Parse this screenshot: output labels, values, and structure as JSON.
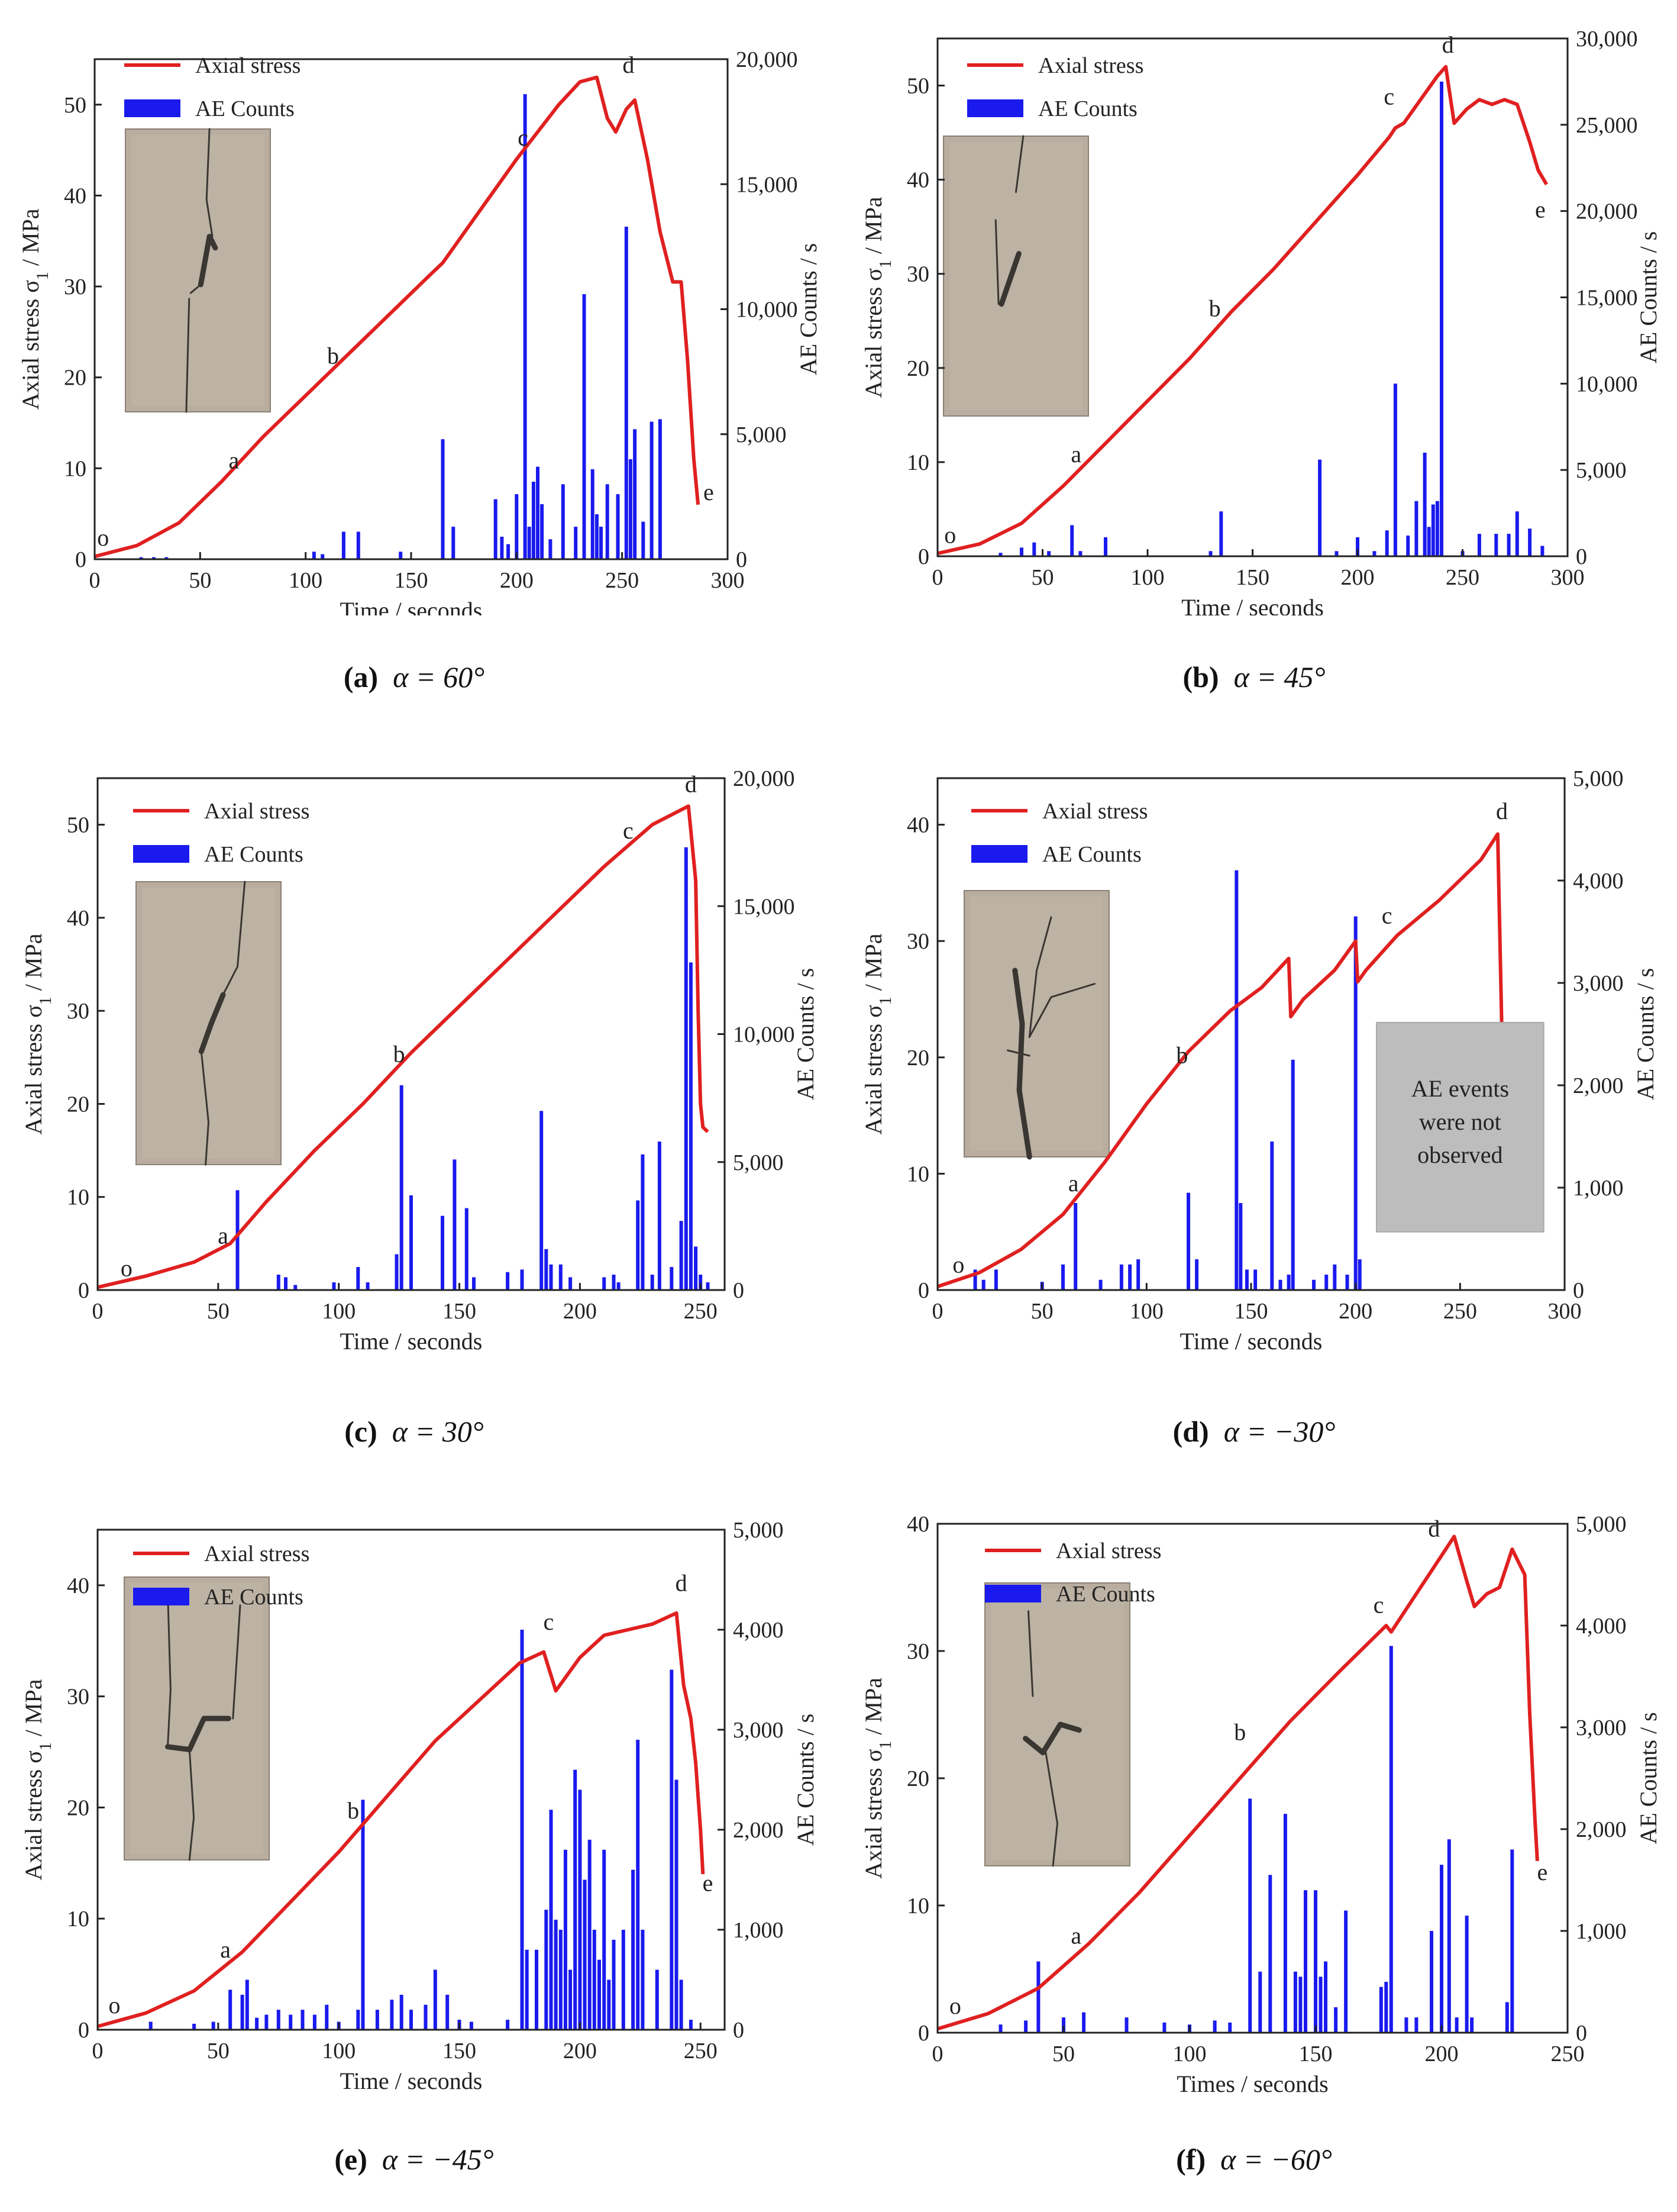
{
  "colors": {
    "stress": "#e02020",
    "ae": "#1a1aee",
    "axis": "#222222",
    "note_box": "#bdbdbd",
    "photo": "#b8ad9e",
    "crack": "#3a3632"
  },
  "legend": {
    "stress": "Axial stress",
    "ae": "AE Counts"
  },
  "y_left_prefix": "Axial stress σ",
  "y_left_sub": "1",
  "y_left_suffix": " / MPa",
  "ylabel_right": "AE Counts / s",
  "xlabel_default": "Time / seconds",
  "xlabel_f": "Times / seconds",
  "note_d": [
    "AE events",
    "were not",
    "observed"
  ],
  "captions": [
    {
      "label": "(a)",
      "alpha": "α = 60°"
    },
    {
      "label": "(b)",
      "alpha": "α = 45°"
    },
    {
      "label": "(c)",
      "alpha": "α = 30°"
    },
    {
      "label": "(d)",
      "alpha": "α = −30°"
    },
    {
      "label": "(e)",
      "alpha": "α = −45°"
    },
    {
      "label": "(f)",
      "alpha": "α = −60°"
    }
  ],
  "chart_data": [
    {
      "type": "line+bar",
      "panel": "a",
      "xlabel": "Time / seconds",
      "xlim": [
        0,
        300
      ],
      "xticks": [
        0,
        50,
        100,
        150,
        200,
        250,
        300
      ],
      "ylim_left": [
        0,
        55
      ],
      "yticks_left": [
        0,
        10,
        20,
        30,
        40,
        50
      ],
      "ylim_right": [
        0,
        20000
      ],
      "yticks_right": [
        0,
        5000,
        10000,
        15000,
        20000
      ],
      "yticks_right_labels": [
        "0",
        "5,000",
        "10,000",
        "15,000",
        "20,000"
      ],
      "stress_x": [
        0,
        20,
        40,
        60,
        80,
        100,
        120,
        140,
        160,
        165,
        180,
        200,
        220,
        230,
        238,
        243,
        247,
        252,
        256,
        262,
        268,
        274,
        278,
        281,
        284,
        286
      ],
      "stress_y": [
        0.3,
        1.5,
        4,
        8.5,
        13.5,
        18,
        22.5,
        27,
        31.5,
        32.6,
        37.5,
        44,
        50,
        52.5,
        53,
        48.5,
        47,
        49.5,
        50.5,
        44,
        36,
        30.5,
        30.5,
        22,
        11,
        6
      ],
      "ae_x": [
        22,
        28,
        34,
        104,
        108,
        118,
        125,
        145,
        165,
        170,
        190,
        193,
        196,
        200,
        204,
        206,
        208,
        210,
        212,
        216,
        222,
        228,
        232,
        236,
        238,
        240,
        243,
        248,
        252,
        254,
        256,
        260,
        264,
        268
      ],
      "ae_y": [
        80,
        80,
        80,
        300,
        200,
        1100,
        1100,
        300,
        4800,
        1300,
        2400,
        900,
        600,
        2600,
        18600,
        1300,
        3100,
        3700,
        2200,
        800,
        3000,
        1300,
        10600,
        3600,
        1800,
        1300,
        3000,
        2600,
        13300,
        4000,
        5200,
        1500,
        5500,
        5600
      ],
      "points": [
        {
          "label": "o",
          "x": 4,
          "y": 1.5
        },
        {
          "label": "a",
          "x": 66,
          "y": 10
        },
        {
          "label": "b",
          "x": 113,
          "y": 21.5
        },
        {
          "label": "c",
          "x": 203,
          "y": 45.5
        },
        {
          "label": "d",
          "x": 253,
          "y": 53.5
        },
        {
          "label": "e",
          "x": 291,
          "y": 6.5
        }
      ],
      "legend_position": "top-left",
      "inset_photo": true
    },
    {
      "type": "line+bar",
      "panel": "b",
      "xlabel": "Time / seconds",
      "xlim": [
        0,
        300
      ],
      "xticks": [
        0,
        50,
        100,
        150,
        200,
        250,
        300
      ],
      "ylim_left": [
        0,
        55
      ],
      "yticks_left": [
        0,
        10,
        20,
        30,
        40,
        50
      ],
      "ylim_right": [
        0,
        30000
      ],
      "yticks_right": [
        0,
        5000,
        10000,
        15000,
        20000,
        25000,
        30000
      ],
      "yticks_right_labels": [
        "0",
        "5,000",
        "10,000",
        "15,000",
        "20,000",
        "25,000",
        "30,000"
      ],
      "stress_x": [
        0,
        20,
        40,
        60,
        80,
        100,
        120,
        140,
        160,
        180,
        200,
        215,
        218,
        222,
        230,
        238,
        242,
        246,
        252,
        258,
        264,
        270,
        276,
        282,
        286,
        290
      ],
      "stress_y": [
        0.3,
        1.3,
        3.5,
        7.5,
        12,
        16.5,
        21,
        26,
        30.5,
        35.5,
        40.5,
        44.5,
        45.5,
        46,
        48.5,
        51,
        52,
        46,
        47.5,
        48.5,
        48,
        48.5,
        48,
        44,
        41,
        39.5
      ],
      "ae_x": [
        30,
        40,
        46,
        53,
        64,
        68,
        80,
        130,
        135,
        182,
        190,
        200,
        208,
        214,
        218,
        224,
        228,
        232,
        234,
        236,
        238,
        240,
        250,
        258,
        266,
        272,
        276,
        282,
        288
      ],
      "ae_y": [
        200,
        500,
        800,
        300,
        1800,
        300,
        1100,
        300,
        2600,
        5600,
        300,
        1100,
        300,
        1500,
        10000,
        1200,
        3200,
        6000,
        1700,
        3000,
        3200,
        27500,
        300,
        1300,
        1300,
        1300,
        2600,
        1600,
        600
      ],
      "points": [
        {
          "label": "o",
          "x": 6,
          "y": 1.4
        },
        {
          "label": "a",
          "x": 66,
          "y": 10
        },
        {
          "label": "b",
          "x": 132,
          "y": 25.5
        },
        {
          "label": "c",
          "x": 215,
          "y": 48
        },
        {
          "label": "d",
          "x": 243,
          "y": 53.5
        },
        {
          "label": "e",
          "x": 287,
          "y": 36
        }
      ],
      "legend_position": "top-left",
      "inset_photo": true
    },
    {
      "type": "line+bar",
      "panel": "c",
      "xlabel": "Time / seconds",
      "xlim": [
        0,
        260
      ],
      "xticks": [
        0,
        50,
        100,
        150,
        200,
        250
      ],
      "ylim_left": [
        0,
        55
      ],
      "yticks_left": [
        0,
        10,
        20,
        30,
        40,
        50
      ],
      "ylim_right": [
        0,
        20000
      ],
      "yticks_right": [
        0,
        5000,
        10000,
        15000,
        20000
      ],
      "yticks_right_labels": [
        "0",
        "5,000",
        "10,000",
        "15,000",
        "20,000"
      ],
      "stress_x": [
        0,
        20,
        40,
        55,
        70,
        90,
        110,
        130,
        150,
        170,
        190,
        210,
        230,
        245,
        248,
        249,
        250,
        251,
        253
      ],
      "stress_y": [
        0.3,
        1.5,
        3,
        5,
        9.5,
        15,
        20,
        25.5,
        30.5,
        35.5,
        40.5,
        45.5,
        50,
        52,
        44,
        30,
        20,
        17.5,
        17
      ],
      "ae_x": [
        58,
        75,
        78,
        82,
        98,
        108,
        112,
        124,
        126,
        130,
        143,
        148,
        153,
        156,
        170,
        176,
        184,
        186,
        188,
        192,
        196,
        210,
        214,
        216,
        224,
        226,
        230,
        233,
        238,
        242,
        244,
        246,
        248,
        250,
        253
      ],
      "ae_y": [
        3900,
        600,
        500,
        200,
        300,
        900,
        300,
        1400,
        8000,
        3700,
        2900,
        5100,
        3200,
        500,
        700,
        800,
        7000,
        1600,
        1000,
        1000,
        500,
        500,
        600,
        300,
        3500,
        5300,
        600,
        5800,
        900,
        2700,
        17300,
        12800,
        1700,
        600,
        300
      ],
      "points": [
        {
          "label": "o",
          "x": 12,
          "y": 1.5
        },
        {
          "label": "a",
          "x": 52,
          "y": 5
        },
        {
          "label": "b",
          "x": 125,
          "y": 24.5
        },
        {
          "label": "c",
          "x": 220,
          "y": 48.5
        },
        {
          "label": "d",
          "x": 246,
          "y": 53.5
        }
      ],
      "legend_position": "top-left",
      "inset_photo": true
    },
    {
      "type": "line+bar",
      "panel": "d",
      "xlabel": "Time / seconds",
      "xlim": [
        0,
        300
      ],
      "xticks": [
        0,
        50,
        100,
        150,
        200,
        250,
        300
      ],
      "ylim_left": [
        0,
        44
      ],
      "yticks_left": [
        0,
        10,
        20,
        30,
        40
      ],
      "ylim_right": [
        0,
        5000
      ],
      "yticks_right": [
        0,
        1000,
        2000,
        3000,
        4000,
        5000
      ],
      "yticks_right_labels": [
        "0",
        "1,000",
        "2,000",
        "3,000",
        "4,000",
        "5,000"
      ],
      "stress_x": [
        0,
        20,
        40,
        60,
        80,
        100,
        120,
        140,
        155,
        168,
        169,
        175,
        190,
        200,
        201,
        205,
        220,
        240,
        260,
        268,
        270,
        272
      ],
      "stress_y": [
        0.3,
        1.5,
        3.5,
        6.5,
        11,
        16,
        20.5,
        24,
        26,
        28.5,
        23.5,
        25,
        27.5,
        30,
        26.5,
        27.5,
        30.5,
        33.5,
        37,
        39.2,
        22,
        5
      ],
      "ae_x": [
        18,
        22,
        28,
        50,
        60,
        66,
        78,
        88,
        92,
        96,
        120,
        124,
        143,
        145,
        148,
        152,
        160,
        164,
        168,
        170,
        180,
        186,
        190,
        196,
        200,
        202
      ],
      "ae_y": [
        200,
        100,
        200,
        80,
        250,
        850,
        100,
        250,
        250,
        300,
        950,
        300,
        4100,
        850,
        200,
        200,
        1450,
        100,
        150,
        2250,
        100,
        150,
        250,
        150,
        3650,
        300
      ],
      "points": [
        {
          "label": "o",
          "x": 10,
          "y": 1.5
        },
        {
          "label": "a",
          "x": 65,
          "y": 8.5
        },
        {
          "label": "b",
          "x": 117,
          "y": 19.5
        },
        {
          "label": "c",
          "x": 215,
          "y": 31.5
        },
        {
          "label": "d",
          "x": 270,
          "y": 40.5
        }
      ],
      "legend_position": "top-left",
      "inset_photo": true,
      "annotation_box": true
    },
    {
      "type": "line+bar",
      "panel": "e",
      "xlabel": "Time / seconds",
      "xlim": [
        0,
        260
      ],
      "xticks": [
        0,
        50,
        100,
        150,
        200,
        250
      ],
      "ylim_left": [
        0,
        45
      ],
      "yticks_left": [
        0,
        10,
        20,
        30,
        40
      ],
      "ylim_right": [
        0,
        5000
      ],
      "yticks_right": [
        0,
        1000,
        2000,
        3000,
        4000,
        5000
      ],
      "yticks_right_labels": [
        "0",
        "1,000",
        "2,000",
        "3,000",
        "4,000",
        "5,000"
      ],
      "stress_x": [
        0,
        20,
        40,
        60,
        80,
        100,
        120,
        140,
        160,
        175,
        185,
        190,
        195,
        200,
        210,
        220,
        230,
        240,
        243,
        246,
        248,
        250,
        251
      ],
      "stress_y": [
        0.3,
        1.5,
        3.5,
        7,
        11.5,
        16,
        21,
        26,
        30,
        33,
        34,
        30.5,
        32,
        33.5,
        35.5,
        36,
        36.5,
        37.5,
        31,
        28,
        24,
        18,
        14
      ],
      "ae_x": [
        22,
        40,
        48,
        55,
        60,
        62,
        66,
        70,
        75,
        80,
        85,
        90,
        95,
        100,
        108,
        110,
        116,
        122,
        126,
        130,
        136,
        140,
        145,
        150,
        155,
        170,
        176,
        178,
        182,
        186,
        188,
        190,
        192,
        194,
        196,
        198,
        200,
        202,
        204,
        206,
        208,
        210,
        212,
        214,
        218,
        222,
        224,
        226,
        232,
        238,
        240,
        242,
        246
      ],
      "ae_y": [
        80,
        60,
        80,
        400,
        350,
        500,
        120,
        150,
        200,
        150,
        200,
        150,
        250,
        80,
        200,
        2300,
        200,
        300,
        350,
        200,
        250,
        600,
        350,
        100,
        80,
        100,
        4000,
        800,
        800,
        1200,
        2200,
        1100,
        1000,
        1800,
        600,
        2600,
        2400,
        1500,
        1900,
        1000,
        700,
        1800,
        500,
        900,
        1000,
        1600,
        2900,
        1000,
        600,
        3600,
        2500,
        500,
        100
      ],
      "points": [
        {
          "label": "o",
          "x": 7,
          "y": 1.5
        },
        {
          "label": "a",
          "x": 53,
          "y": 6.5
        },
        {
          "label": "b",
          "x": 106,
          "y": 19
        },
        {
          "label": "c",
          "x": 187,
          "y": 36
        },
        {
          "label": "d",
          "x": 242,
          "y": 39.5
        },
        {
          "label": "e",
          "x": 253,
          "y": 12.5
        }
      ],
      "legend_position": "top-left",
      "inset_photo": true
    },
    {
      "type": "line+bar",
      "panel": "f",
      "xlabel": "Times / seconds",
      "xlim": [
        0,
        250
      ],
      "xticks": [
        0,
        50,
        100,
        150,
        200,
        250
      ],
      "ylim_left": [
        0,
        40
      ],
      "yticks_left": [
        0,
        10,
        20,
        30,
        40
      ],
      "ylim_right": [
        0,
        5000
      ],
      "yticks_right": [
        0,
        1000,
        2000,
        3000,
        4000,
        5000
      ],
      "yticks_right_labels": [
        "0",
        "1,000",
        "2,000",
        "3,000",
        "4,000",
        "5,000"
      ],
      "stress_x": [
        0,
        20,
        40,
        60,
        80,
        100,
        120,
        140,
        160,
        178,
        180,
        195,
        205,
        210,
        213,
        218,
        223,
        228,
        233,
        235,
        237,
        238
      ],
      "stress_y": [
        0.3,
        1.5,
        3.5,
        7,
        11,
        15.5,
        20,
        24.5,
        28.5,
        32,
        31.5,
        36,
        39,
        35.5,
        33.5,
        34.5,
        35,
        38,
        36,
        25,
        17,
        13.5
      ],
      "ae_x": [
        25,
        35,
        40,
        50,
        58,
        75,
        90,
        100,
        110,
        116,
        124,
        128,
        132,
        138,
        142,
        144,
        146,
        150,
        152,
        154,
        158,
        162,
        176,
        178,
        180,
        186,
        190,
        196,
        200,
        203,
        206,
        210,
        212,
        226,
        228
      ],
      "ae_y": [
        80,
        120,
        700,
        150,
        200,
        150,
        100,
        80,
        120,
        100,
        2300,
        600,
        1550,
        2150,
        600,
        550,
        1400,
        1400,
        550,
        700,
        250,
        1200,
        450,
        500,
        3800,
        150,
        150,
        1000,
        1650,
        1900,
        150,
        1150,
        150,
        300,
        1800
      ],
      "points": [
        {
          "label": "o",
          "x": 7,
          "y": 1.5
        },
        {
          "label": "a",
          "x": 55,
          "y": 7
        },
        {
          "label": "b",
          "x": 120,
          "y": 23
        },
        {
          "label": "c",
          "x": 175,
          "y": 33
        },
        {
          "label": "d",
          "x": 197,
          "y": 39
        },
        {
          "label": "e",
          "x": 240,
          "y": 12
        }
      ],
      "legend_position": "top-left",
      "inset_photo": true
    }
  ]
}
